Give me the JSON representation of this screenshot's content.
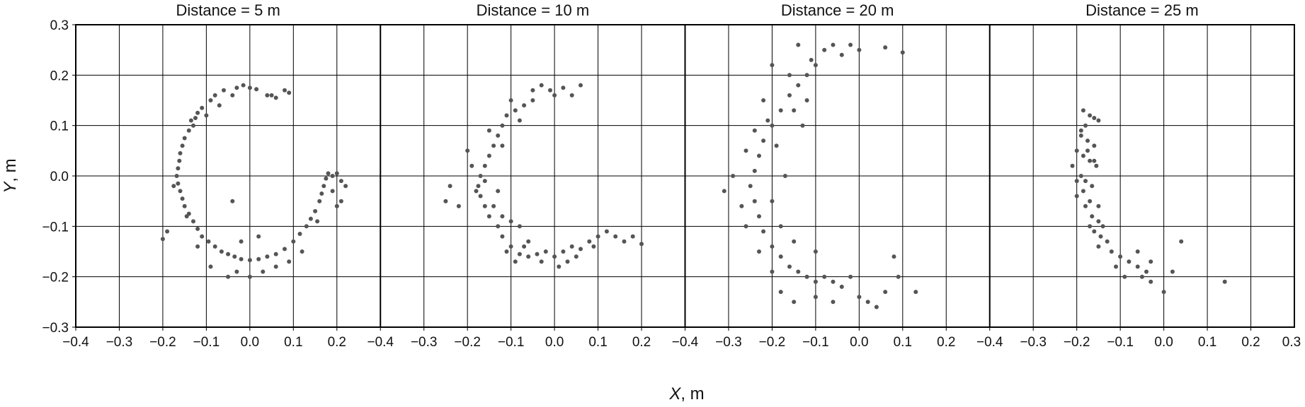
{
  "chart_data": {
    "type": "scatter",
    "x_axis_title": {
      "var": "X",
      "unit": ", m"
    },
    "y_axis_title": {
      "var": "Y",
      "unit": ", m"
    },
    "xlim": [
      -0.4,
      0.3
    ],
    "ylim": [
      -0.3,
      0.3
    ],
    "x_ticks": [
      "−0.4",
      "−0.3",
      "−0.2",
      "−0.1",
      "0.0",
      "0.1",
      "0.2"
    ],
    "x_ticks_last": "0.3",
    "y_ticks": [
      "−0.3",
      "−0.2",
      "−0.1",
      "0.0",
      "0.1",
      "0.2",
      "0.3"
    ],
    "grid": true,
    "marker_color": "#555555",
    "panels": [
      {
        "title": "Distance = 5 m",
        "points": [
          [
            -0.03,
            0.175
          ],
          [
            -0.015,
            0.18
          ],
          [
            0.0,
            0.175
          ],
          [
            0.015,
            0.172
          ],
          [
            0.04,
            0.16
          ],
          [
            0.06,
            0.155
          ],
          [
            0.08,
            0.17
          ],
          [
            0.09,
            0.165
          ],
          [
            -0.06,
            0.17
          ],
          [
            -0.08,
            0.16
          ],
          [
            -0.09,
            0.15
          ],
          [
            -0.11,
            0.135
          ],
          [
            -0.12,
            0.125
          ],
          [
            -0.125,
            0.115
          ],
          [
            -0.135,
            0.11
          ],
          [
            -0.13,
            0.1
          ],
          [
            -0.14,
            0.09
          ],
          [
            -0.15,
            0.075
          ],
          [
            -0.155,
            0.06
          ],
          [
            -0.16,
            0.045
          ],
          [
            -0.162,
            0.03
          ],
          [
            -0.165,
            0.015
          ],
          [
            -0.168,
            0.0
          ],
          [
            -0.165,
            -0.015
          ],
          [
            -0.16,
            -0.03
          ],
          [
            -0.155,
            -0.045
          ],
          [
            -0.15,
            -0.06
          ],
          [
            -0.14,
            -0.075
          ],
          [
            -0.13,
            -0.09
          ],
          [
            -0.12,
            -0.105
          ],
          [
            -0.11,
            -0.12
          ],
          [
            -0.095,
            -0.13
          ],
          [
            -0.08,
            -0.14
          ],
          [
            -0.065,
            -0.15
          ],
          [
            -0.05,
            -0.155
          ],
          [
            -0.035,
            -0.16
          ],
          [
            -0.02,
            -0.165
          ],
          [
            0.0,
            -0.167
          ],
          [
            0.02,
            -0.165
          ],
          [
            0.04,
            -0.16
          ],
          [
            0.06,
            -0.155
          ],
          [
            0.08,
            -0.145
          ],
          [
            0.1,
            -0.13
          ],
          [
            0.115,
            -0.115
          ],
          [
            0.13,
            -0.1
          ],
          [
            0.14,
            -0.085
          ],
          [
            0.15,
            -0.07
          ],
          [
            0.16,
            -0.05
          ],
          [
            0.165,
            -0.035
          ],
          [
            0.17,
            -0.02
          ],
          [
            0.175,
            -0.005
          ],
          [
            0.18,
            0.005
          ],
          [
            0.19,
            0.0
          ],
          [
            0.2,
            0.005
          ],
          [
            0.21,
            -0.01
          ],
          [
            0.22,
            -0.02
          ],
          [
            0.2,
            -0.06
          ],
          [
            0.21,
            -0.05
          ],
          [
            -0.2,
            -0.125
          ],
          [
            -0.19,
            -0.11
          ],
          [
            -0.04,
            -0.05
          ],
          [
            -0.05,
            -0.2
          ],
          [
            -0.03,
            -0.19
          ],
          [
            0.0,
            -0.2
          ],
          [
            0.03,
            -0.19
          ],
          [
            -0.02,
            -0.13
          ],
          [
            0.02,
            -0.12
          ],
          [
            -0.09,
            -0.18
          ],
          [
            0.09,
            -0.17
          ],
          [
            0.12,
            -0.15
          ],
          [
            -0.12,
            -0.14
          ],
          [
            -0.1,
            0.12
          ],
          [
            -0.07,
            0.14
          ],
          [
            -0.04,
            0.16
          ],
          [
            0.05,
            0.16
          ],
          [
            -0.175,
            -0.02
          ],
          [
            0.19,
            -0.03
          ],
          [
            -0.145,
            -0.08
          ],
          [
            0.155,
            -0.09
          ],
          [
            0.06,
            -0.18
          ]
        ]
      },
      {
        "title": "Distance = 10 m",
        "points": [
          [
            -0.03,
            0.18
          ],
          [
            -0.01,
            0.17
          ],
          [
            0.02,
            0.175
          ],
          [
            0.06,
            0.18
          ],
          [
            0.0,
            0.16
          ],
          [
            -0.05,
            0.15
          ],
          [
            -0.07,
            0.14
          ],
          [
            -0.09,
            0.13
          ],
          [
            -0.11,
            0.12
          ],
          [
            -0.12,
            0.1
          ],
          [
            -0.13,
            0.08
          ],
          [
            -0.14,
            0.06
          ],
          [
            -0.15,
            0.04
          ],
          [
            -0.16,
            0.02
          ],
          [
            -0.17,
            0.0
          ],
          [
            -0.175,
            -0.02
          ],
          [
            -0.17,
            -0.04
          ],
          [
            -0.16,
            -0.06
          ],
          [
            -0.15,
            -0.08
          ],
          [
            -0.13,
            -0.1
          ],
          [
            -0.12,
            -0.12
          ],
          [
            -0.1,
            -0.14
          ],
          [
            -0.08,
            -0.155
          ],
          [
            -0.06,
            -0.16
          ],
          [
            -0.04,
            -0.155
          ],
          [
            -0.02,
            -0.15
          ],
          [
            0.0,
            -0.16
          ],
          [
            0.02,
            -0.15
          ],
          [
            0.04,
            -0.14
          ],
          [
            0.06,
            -0.145
          ],
          [
            0.08,
            -0.13
          ],
          [
            0.1,
            -0.12
          ],
          [
            0.12,
            -0.11
          ],
          [
            0.14,
            -0.12
          ],
          [
            0.16,
            -0.13
          ],
          [
            0.18,
            -0.12
          ],
          [
            0.2,
            -0.135
          ],
          [
            -0.25,
            -0.05
          ],
          [
            -0.24,
            -0.02
          ],
          [
            -0.22,
            -0.06
          ],
          [
            -0.2,
            0.05
          ],
          [
            -0.19,
            0.02
          ],
          [
            -0.18,
            -0.03
          ],
          [
            -0.14,
            -0.06
          ],
          [
            -0.12,
            -0.08
          ],
          [
            -0.1,
            -0.09
          ],
          [
            -0.08,
            -0.1
          ],
          [
            -0.11,
            -0.15
          ],
          [
            -0.09,
            -0.17
          ],
          [
            -0.06,
            -0.13
          ],
          [
            -0.03,
            -0.17
          ],
          [
            0.01,
            -0.18
          ],
          [
            0.03,
            -0.17
          ],
          [
            0.05,
            -0.16
          ],
          [
            -0.1,
            0.15
          ],
          [
            -0.08,
            0.11
          ],
          [
            -0.12,
            0.06
          ],
          [
            -0.15,
            0.09
          ],
          [
            -0.16,
            -0.01
          ],
          [
            -0.13,
            -0.03
          ],
          [
            -0.05,
            0.17
          ],
          [
            0.04,
            0.16
          ],
          [
            -0.07,
            -0.14
          ],
          [
            0.09,
            -0.14
          ]
        ]
      },
      {
        "title": "Distance = 20 m",
        "points": [
          [
            -0.06,
            0.26
          ],
          [
            -0.08,
            0.25
          ],
          [
            -0.1,
            0.22
          ],
          [
            -0.12,
            0.2
          ],
          [
            -0.14,
            0.18
          ],
          [
            -0.16,
            0.16
          ],
          [
            -0.18,
            0.13
          ],
          [
            -0.2,
            0.1
          ],
          [
            -0.22,
            0.07
          ],
          [
            -0.23,
            0.04
          ],
          [
            -0.24,
            0.01
          ],
          [
            -0.25,
            -0.02
          ],
          [
            -0.24,
            -0.05
          ],
          [
            -0.23,
            -0.08
          ],
          [
            -0.22,
            -0.11
          ],
          [
            -0.2,
            -0.14
          ],
          [
            -0.18,
            -0.16
          ],
          [
            -0.16,
            -0.18
          ],
          [
            -0.14,
            -0.19
          ],
          [
            -0.12,
            -0.2
          ],
          [
            -0.1,
            -0.21
          ],
          [
            -0.08,
            -0.2
          ],
          [
            -0.06,
            -0.21
          ],
          [
            -0.04,
            -0.22
          ],
          [
            -0.02,
            -0.2
          ],
          [
            0.0,
            -0.24
          ],
          [
            0.02,
            -0.25
          ],
          [
            0.04,
            -0.26
          ],
          [
            0.06,
            -0.23
          ],
          [
            0.09,
            -0.2
          ],
          [
            0.13,
            -0.23
          ],
          [
            0.08,
            -0.16
          ],
          [
            -0.31,
            -0.03
          ],
          [
            -0.29,
            0.0
          ],
          [
            -0.27,
            -0.06
          ],
          [
            -0.26,
            0.05
          ],
          [
            -0.21,
            0.11
          ],
          [
            -0.19,
            0.06
          ],
          [
            -0.17,
            0.0
          ],
          [
            -0.15,
            0.13
          ],
          [
            -0.13,
            0.1
          ],
          [
            -0.12,
            0.15
          ],
          [
            -0.2,
            0.22
          ],
          [
            -0.04,
            0.24
          ],
          [
            0.0,
            0.25
          ],
          [
            -0.02,
            0.26
          ],
          [
            0.06,
            0.255
          ],
          [
            0.1,
            0.245
          ],
          [
            -0.14,
            0.26
          ],
          [
            -0.2,
            -0.05
          ],
          [
            -0.18,
            -0.1
          ],
          [
            -0.15,
            -0.13
          ],
          [
            -0.1,
            -0.15
          ],
          [
            -0.2,
            -0.19
          ],
          [
            -0.18,
            -0.23
          ],
          [
            -0.15,
            -0.25
          ],
          [
            -0.1,
            -0.24
          ],
          [
            -0.06,
            -0.25
          ],
          [
            -0.26,
            -0.1
          ],
          [
            -0.24,
            0.09
          ],
          [
            -0.22,
            0.15
          ],
          [
            -0.23,
            -0.15
          ],
          [
            -0.16,
            0.2
          ],
          [
            -0.11,
            0.23
          ]
        ]
      },
      {
        "title": "Distance = 25 m",
        "points": [
          [
            -0.185,
            0.13
          ],
          [
            -0.17,
            0.12
          ],
          [
            -0.16,
            0.115
          ],
          [
            -0.15,
            0.11
          ],
          [
            -0.18,
            0.1
          ],
          [
            -0.19,
            0.08
          ],
          [
            -0.175,
            0.07
          ],
          [
            -0.16,
            0.06
          ],
          [
            -0.2,
            0.05
          ],
          [
            -0.185,
            0.04
          ],
          [
            -0.17,
            0.03
          ],
          [
            -0.155,
            0.02
          ],
          [
            -0.21,
            0.02
          ],
          [
            -0.19,
            0.0
          ],
          [
            -0.18,
            -0.01
          ],
          [
            -0.165,
            -0.02
          ],
          [
            -0.2,
            -0.01
          ],
          [
            -0.185,
            -0.03
          ],
          [
            -0.17,
            -0.05
          ],
          [
            -0.18,
            -0.06
          ],
          [
            -0.165,
            -0.08
          ],
          [
            -0.15,
            -0.09
          ],
          [
            -0.14,
            -0.1
          ],
          [
            -0.16,
            -0.11
          ],
          [
            -0.145,
            -0.12
          ],
          [
            -0.13,
            -0.13
          ],
          [
            -0.15,
            -0.14
          ],
          [
            -0.12,
            -0.15
          ],
          [
            -0.1,
            -0.16
          ],
          [
            -0.08,
            -0.17
          ],
          [
            -0.06,
            -0.18
          ],
          [
            -0.04,
            -0.19
          ],
          [
            -0.05,
            -0.2
          ],
          [
            -0.03,
            -0.21
          ],
          [
            -0.06,
            -0.15
          ],
          [
            -0.03,
            -0.17
          ],
          [
            0.0,
            -0.23
          ],
          [
            0.02,
            -0.19
          ],
          [
            0.04,
            -0.13
          ],
          [
            0.14,
            -0.21
          ],
          [
            -0.19,
            0.09
          ],
          [
            -0.175,
            0.05
          ],
          [
            -0.16,
            0.03
          ],
          [
            -0.2,
            -0.04
          ],
          [
            -0.15,
            -0.06
          ],
          [
            -0.17,
            -0.1
          ],
          [
            -0.11,
            -0.18
          ],
          [
            -0.09,
            -0.2
          ]
        ]
      }
    ]
  }
}
